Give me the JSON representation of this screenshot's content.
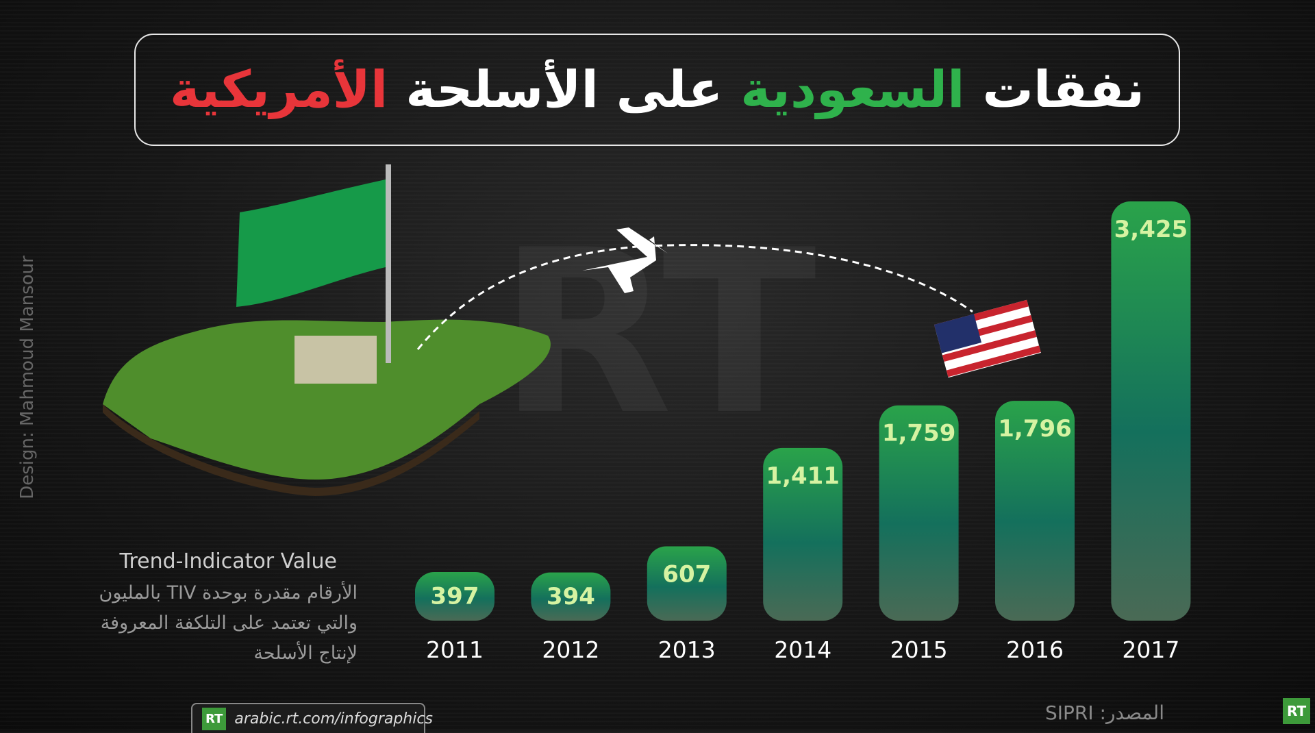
{
  "chart_data": {
    "type": "bar",
    "title": [
      "نفقات",
      "السعودية",
      "على الأسلحة",
      "الأمريكية"
    ],
    "title_colors": [
      "#ffffff",
      "#2fb24c",
      "#ffffff",
      "#e8353a"
    ],
    "categories": [
      "2011",
      "2012",
      "2013",
      "2014",
      "2015",
      "2016",
      "2017"
    ],
    "values": [
      397,
      394,
      607,
      1411,
      1759,
      1796,
      3425
    ],
    "value_labels": [
      "397",
      "394",
      "607",
      "1,411",
      "1,759",
      "1,796",
      "3,425"
    ],
    "color": "#2aa34a",
    "note_title": "Trend-Indicator Value",
    "note_lines": [
      "الأرقام مقدرة بوحدة TIV بالمليون",
      "والتي تعتمد على التلكفة المعروفة",
      "لإنتاج الأسلحة"
    ],
    "credit": "Design: Mahmoud Mansour",
    "url": "arabic.rt.com/infographics",
    "source": "المصدر: SIPRI",
    "logo": "RT"
  }
}
